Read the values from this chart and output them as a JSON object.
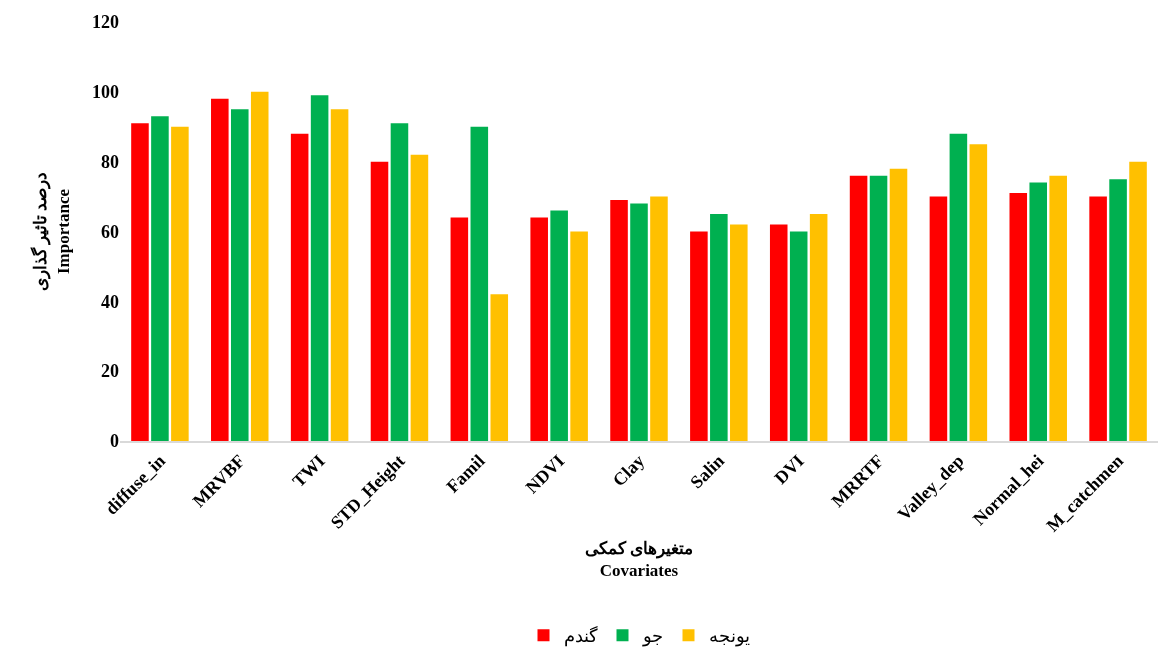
{
  "chart_data": {
    "type": "bar",
    "xlabel": "متغیرهای کمکی\nCovariates",
    "ylabel": "درصد تاثیر گذاری\nImportance",
    "categories": [
      "diffuse_in",
      "MRVBF",
      "TWI",
      "STD_Height",
      "Famil",
      "NDVI",
      "Clay",
      "Salin",
      "DVI",
      "MRRTF",
      "Valley_dep",
      "Normal_hei",
      "M_catchmen"
    ],
    "series": [
      {
        "name": "گندم",
        "color": "#ff0000",
        "values": [
          91,
          98,
          88,
          80,
          64,
          64,
          69,
          60,
          62,
          76,
          70,
          71,
          70
        ]
      },
      {
        "name": "جو",
        "color": "#00b050",
        "values": [
          93,
          95,
          99,
          91,
          90,
          66,
          68,
          65,
          60,
          76,
          88,
          74,
          75
        ]
      },
      {
        "name": "یونجه",
        "color": "#ffc000",
        "values": [
          90,
          100,
          95,
          82,
          42,
          60,
          70,
          62,
          65,
          78,
          85,
          76,
          80
        ]
      }
    ],
    "ylim": [
      0,
      120
    ],
    "yticks": [
      0,
      20,
      40,
      60,
      80,
      100,
      120
    ],
    "grid": false,
    "legend": "bottom"
  }
}
